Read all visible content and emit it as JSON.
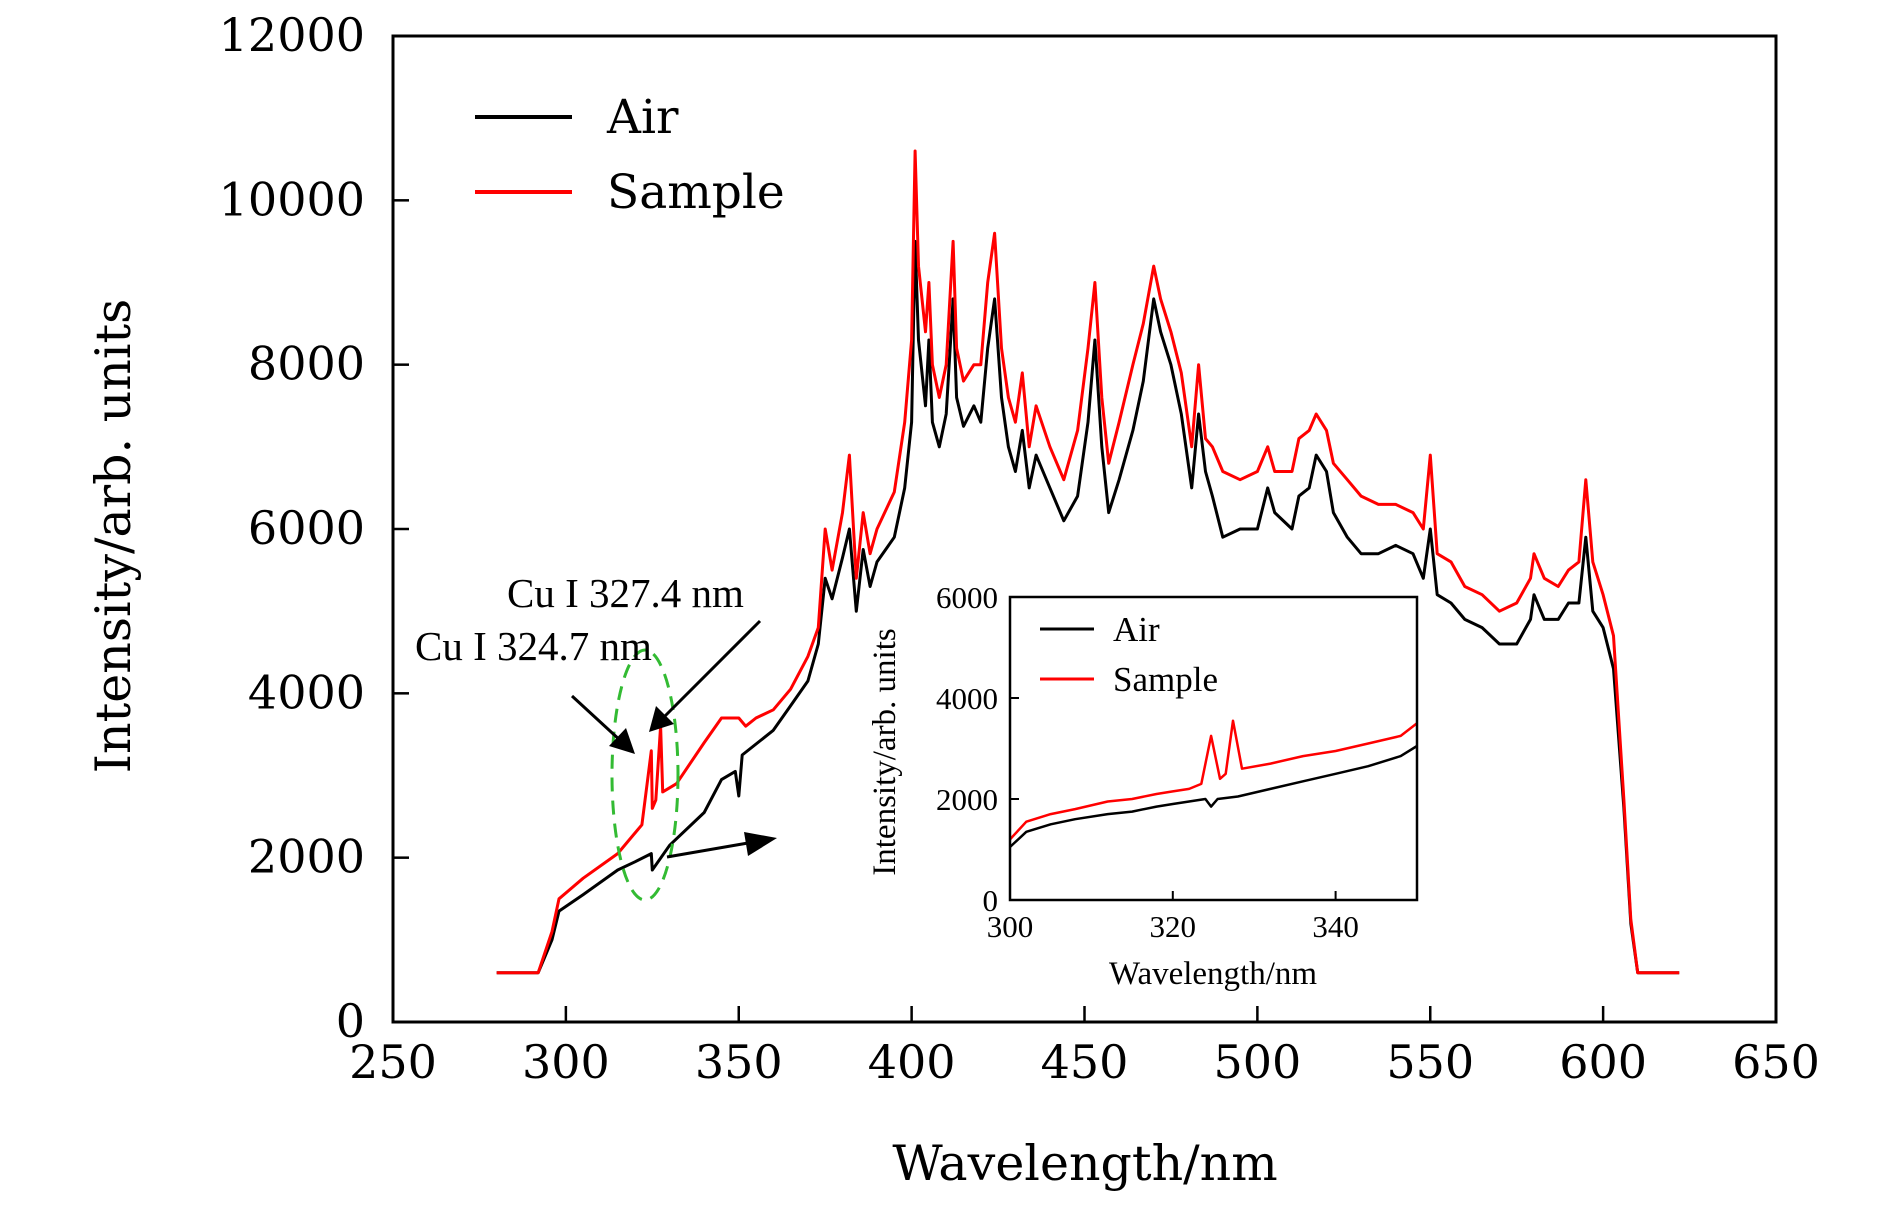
{
  "colors": {
    "air": "#000000",
    "sample": "#ff0000",
    "highlight": "#33bb33"
  },
  "chart_data": [
    {
      "type": "line",
      "xlabel": "Wavelength/nm",
      "ylabel": "Intensity/arb. units",
      "xlim": [
        250,
        650
      ],
      "ylim": [
        0,
        12000
      ],
      "xticks": [
        250,
        300,
        350,
        400,
        450,
        500,
        550,
        600,
        650
      ],
      "yticks": [
        0,
        2000,
        4000,
        6000,
        8000,
        10000,
        12000
      ],
      "grid": false,
      "legend_position": "top-left",
      "annotations": [
        "Cu I 327.4 nm",
        "Cu I 324.7 nm"
      ],
      "series": [
        {
          "name": "Air",
          "color": "#000000",
          "points": [
            [
              280,
              600
            ],
            [
              292,
              600
            ],
            [
              296,
              1000
            ],
            [
              298,
              1350
            ],
            [
              305,
              1550
            ],
            [
              315,
              1850
            ],
            [
              320,
              1950
            ],
            [
              324.7,
              2050
            ],
            [
              325,
              1850
            ],
            [
              330,
              2150
            ],
            [
              340,
              2550
            ],
            [
              345,
              2950
            ],
            [
              349,
              3050
            ],
            [
              350,
              2750
            ],
            [
              351,
              3250
            ],
            [
              360,
              3550
            ],
            [
              365,
              3850
            ],
            [
              370,
              4150
            ],
            [
              373,
              4600
            ],
            [
              375,
              5400
            ],
            [
              377,
              5150
            ],
            [
              380,
              5650
            ],
            [
              382,
              6000
            ],
            [
              384,
              5000
            ],
            [
              386,
              5750
            ],
            [
              388,
              5300
            ],
            [
              390,
              5600
            ],
            [
              395,
              5900
            ],
            [
              398,
              6500
            ],
            [
              400,
              7300
            ],
            [
              401,
              9500
            ],
            [
              402,
              8300
            ],
            [
              404,
              7500
            ],
            [
              405,
              8300
            ],
            [
              406,
              7300
            ],
            [
              408,
              7000
            ],
            [
              410,
              7400
            ],
            [
              412,
              8800
            ],
            [
              413,
              7600
            ],
            [
              415,
              7250
            ],
            [
              418,
              7500
            ],
            [
              420,
              7300
            ],
            [
              422,
              8200
            ],
            [
              424,
              8800
            ],
            [
              426,
              7600
            ],
            [
              428,
              7000
            ],
            [
              430,
              6700
            ],
            [
              432,
              7200
            ],
            [
              434,
              6500
            ],
            [
              436,
              6900
            ],
            [
              440,
              6500
            ],
            [
              444,
              6100
            ],
            [
              448,
              6400
            ],
            [
              451,
              7300
            ],
            [
              453,
              8300
            ],
            [
              455,
              7000
            ],
            [
              457,
              6200
            ],
            [
              460,
              6600
            ],
            [
              464,
              7200
            ],
            [
              467,
              7800
            ],
            [
              470,
              8800
            ],
            [
              472,
              8400
            ],
            [
              475,
              8000
            ],
            [
              478,
              7400
            ],
            [
              481,
              6500
            ],
            [
              483,
              7400
            ],
            [
              485,
              6700
            ],
            [
              487,
              6400
            ],
            [
              490,
              5900
            ],
            [
              495,
              6000
            ],
            [
              500,
              6000
            ],
            [
              503,
              6500
            ],
            [
              505,
              6200
            ],
            [
              510,
              6000
            ],
            [
              512,
              6400
            ],
            [
              515,
              6500
            ],
            [
              517,
              6900
            ],
            [
              520,
              6700
            ],
            [
              522,
              6200
            ],
            [
              526,
              5900
            ],
            [
              530,
              5700
            ],
            [
              535,
              5700
            ],
            [
              540,
              5800
            ],
            [
              545,
              5700
            ],
            [
              548,
              5400
            ],
            [
              550,
              6000
            ],
            [
              552,
              5200
            ],
            [
              556,
              5100
            ],
            [
              560,
              4900
            ],
            [
              565,
              4800
            ],
            [
              570,
              4600
            ],
            [
              575,
              4600
            ],
            [
              579,
              4900
            ],
            [
              580,
              5200
            ],
            [
              583,
              4900
            ],
            [
              587,
              4900
            ],
            [
              590,
              5100
            ],
            [
              593,
              5100
            ],
            [
              595,
              5900
            ],
            [
              597,
              5000
            ],
            [
              600,
              4800
            ],
            [
              603,
              4300
            ],
            [
              606,
              2600
            ],
            [
              608,
              1200
            ],
            [
              610,
              600
            ],
            [
              622,
              600
            ]
          ]
        },
        {
          "name": "Sample",
          "color": "#ff0000",
          "points": [
            [
              280,
              600
            ],
            [
              292,
              600
            ],
            [
              296,
              1100
            ],
            [
              298,
              1500
            ],
            [
              305,
              1750
            ],
            [
              315,
              2050
            ],
            [
              320,
              2300
            ],
            [
              322,
              2400
            ],
            [
              324.7,
              3300
            ],
            [
              325,
              2600
            ],
            [
              326,
              2700
            ],
            [
              327.4,
              3600
            ],
            [
              328,
              2800
            ],
            [
              332,
              2900
            ],
            [
              340,
              3400
            ],
            [
              345,
              3700
            ],
            [
              350,
              3700
            ],
            [
              352,
              3600
            ],
            [
              355,
              3700
            ],
            [
              360,
              3800
            ],
            [
              365,
              4050
            ],
            [
              370,
              4450
            ],
            [
              373,
              4800
            ],
            [
              375,
              6000
            ],
            [
              377,
              5500
            ],
            [
              380,
              6200
            ],
            [
              382,
              6900
            ],
            [
              384,
              5400
            ],
            [
              386,
              6200
            ],
            [
              388,
              5700
            ],
            [
              390,
              6000
            ],
            [
              395,
              6450
            ],
            [
              398,
              7300
            ],
            [
              400,
              8300
            ],
            [
              401,
              10600
            ],
            [
              402,
              9200
            ],
            [
              404,
              8400
            ],
            [
              405,
              9000
            ],
            [
              406,
              8000
            ],
            [
              408,
              7600
            ],
            [
              410,
              8000
            ],
            [
              412,
              9500
            ],
            [
              413,
              8200
            ],
            [
              415,
              7800
            ],
            [
              418,
              8000
            ],
            [
              420,
              8000
            ],
            [
              422,
              9000
            ],
            [
              424,
              9600
            ],
            [
              426,
              8200
            ],
            [
              428,
              7600
            ],
            [
              430,
              7300
            ],
            [
              432,
              7900
            ],
            [
              434,
              7000
            ],
            [
              436,
              7500
            ],
            [
              440,
              7000
            ],
            [
              444,
              6600
            ],
            [
              448,
              7200
            ],
            [
              451,
              8200
            ],
            [
              453,
              9000
            ],
            [
              455,
              7600
            ],
            [
              457,
              6800
            ],
            [
              460,
              7300
            ],
            [
              464,
              8000
            ],
            [
              467,
              8500
            ],
            [
              470,
              9200
            ],
            [
              472,
              8800
            ],
            [
              475,
              8400
            ],
            [
              478,
              7900
            ],
            [
              481,
              7000
            ],
            [
              483,
              8000
            ],
            [
              485,
              7100
            ],
            [
              487,
              7000
            ],
            [
              490,
              6700
            ],
            [
              495,
              6600
            ],
            [
              500,
              6700
            ],
            [
              503,
              7000
            ],
            [
              505,
              6700
            ],
            [
              510,
              6700
            ],
            [
              512,
              7100
            ],
            [
              515,
              7200
            ],
            [
              517,
              7400
            ],
            [
              520,
              7200
            ],
            [
              522,
              6800
            ],
            [
              526,
              6600
            ],
            [
              530,
              6400
            ],
            [
              535,
              6300
            ],
            [
              540,
              6300
            ],
            [
              545,
              6200
            ],
            [
              548,
              6000
            ],
            [
              550,
              6900
            ],
            [
              552,
              5700
            ],
            [
              556,
              5600
            ],
            [
              560,
              5300
            ],
            [
              565,
              5200
            ],
            [
              570,
              5000
            ],
            [
              575,
              5100
            ],
            [
              579,
              5400
            ],
            [
              580,
              5700
            ],
            [
              583,
              5400
            ],
            [
              587,
              5300
            ],
            [
              590,
              5500
            ],
            [
              593,
              5600
            ],
            [
              595,
              6600
            ],
            [
              597,
              5600
            ],
            [
              600,
              5200
            ],
            [
              603,
              4700
            ],
            [
              606,
              2700
            ],
            [
              608,
              1250
            ],
            [
              610,
              600
            ],
            [
              622,
              600
            ]
          ]
        }
      ]
    },
    {
      "type": "line",
      "xlabel": "Wavelength/nm",
      "ylabel": "Intensity/arb. units",
      "xlim": [
        300,
        350
      ],
      "ylim": [
        0,
        6000
      ],
      "xticks": [
        300,
        320,
        340
      ],
      "yticks": [
        0,
        2000,
        4000,
        6000
      ],
      "grid": false,
      "legend_position": "top-left",
      "series": [
        {
          "name": "Air",
          "color": "#000000",
          "points": [
            [
              300,
              1050
            ],
            [
              302,
              1350
            ],
            [
              305,
              1500
            ],
            [
              308,
              1600
            ],
            [
              312,
              1700
            ],
            [
              315,
              1750
            ],
            [
              318,
              1850
            ],
            [
              320,
              1900
            ],
            [
              322,
              1950
            ],
            [
              324,
              2000
            ],
            [
              324.7,
              1850
            ],
            [
              325.5,
              2000
            ],
            [
              328,
              2050
            ],
            [
              332,
              2200
            ],
            [
              336,
              2350
            ],
            [
              340,
              2500
            ],
            [
              344,
              2650
            ],
            [
              348,
              2850
            ],
            [
              350,
              3050
            ]
          ]
        },
        {
          "name": "Sample",
          "color": "#ff0000",
          "points": [
            [
              300,
              1200
            ],
            [
              302,
              1550
            ],
            [
              305,
              1700
            ],
            [
              308,
              1800
            ],
            [
              312,
              1950
            ],
            [
              315,
              2000
            ],
            [
              318,
              2100
            ],
            [
              320,
              2150
            ],
            [
              322,
              2200
            ],
            [
              323.5,
              2300
            ],
            [
              324.7,
              3250
            ],
            [
              325.8,
              2400
            ],
            [
              326.5,
              2500
            ],
            [
              327.4,
              3550
            ],
            [
              328.5,
              2600
            ],
            [
              332,
              2700
            ],
            [
              336,
              2850
            ],
            [
              340,
              2950
            ],
            [
              344,
              3100
            ],
            [
              348,
              3250
            ],
            [
              350,
              3500
            ]
          ]
        }
      ]
    }
  ]
}
